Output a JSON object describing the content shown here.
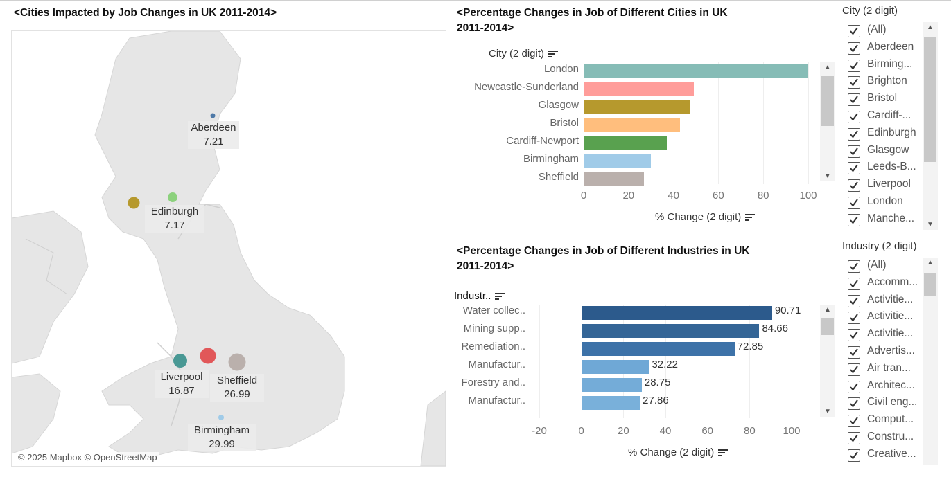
{
  "map": {
    "title": "<Cities Impacted by Job Changes in UK 2011-2014>",
    "copyright": "© 2025 Mapbox © OpenStreetMap",
    "points": [
      {
        "name": "Aberdeen",
        "value": "7.21",
        "color": "#4e79a7"
      },
      {
        "name": "Edinburgh",
        "value": "7.17",
        "color": "#8cd17d"
      },
      {
        "name": "Glasgow",
        "value": "",
        "color": "#b6992d"
      },
      {
        "name": "Liverpool",
        "value": "16.87",
        "color": "#499894"
      },
      {
        "name": "Manchester",
        "value": "",
        "color": "#e15759"
      },
      {
        "name": "Sheffield",
        "value": "26.99",
        "color": "#bab0ac"
      },
      {
        "name": "Birmingham",
        "value": "29.99",
        "color": "#a0cbe8"
      }
    ]
  },
  "city_chart": {
    "title_line1": "<Percentage Changes in Job of Different Cities in UK",
    "title_line2": "2011-2014>",
    "dimension_label": "City (2 digit)",
    "axis_title": "% Change (2 digit)",
    "ticks": [
      "0",
      "20",
      "40",
      "60",
      "80",
      "100"
    ]
  },
  "industry_chart": {
    "title_line1": "<Percentage Changes in Job of Different Industries in UK",
    "title_line2": "2011-2014>",
    "dimension_label": "Industr..",
    "axis_title": "% Change (2 digit)",
    "ticks": [
      "-20",
      "0",
      "20",
      "40",
      "60",
      "80",
      "100"
    ]
  },
  "chart_data": [
    {
      "type": "bar",
      "orientation": "horizontal",
      "title": "<Percentage Changes in Job of Different Cities in UK 2011-2014>",
      "ylabel": "City (2 digit)",
      "xlabel": "% Change (2 digit)",
      "xlim": [
        0,
        100
      ],
      "categories": [
        "London",
        "Newcastle-Sunderland",
        "Glasgow",
        "Bristol",
        "Cardiff-Newport",
        "Birmingham",
        "Sheffield"
      ],
      "values": [
        100,
        49,
        47.5,
        43,
        37,
        30,
        27
      ],
      "colors": [
        "#86bcb6",
        "#ff9d9a",
        "#b6992d",
        "#ffbe7d",
        "#59a14f",
        "#a0cbe8",
        "#bab0ac"
      ]
    },
    {
      "type": "bar",
      "orientation": "horizontal",
      "title": "<Percentage Changes in Job of Different Industries in UK 2011-2014>",
      "ylabel": "Industr..",
      "xlabel": "% Change (2 digit)",
      "xlim": [
        -20,
        100
      ],
      "categories": [
        "Water collec..",
        "Mining supp..",
        "Remediation..",
        "Manufactur..",
        "Forestry and..",
        "Manufactur.."
      ],
      "values": [
        90.71,
        84.66,
        72.85,
        32.22,
        28.75,
        27.86
      ],
      "labels": [
        "90.71",
        "84.66",
        "72.85",
        "32.22",
        "28.75",
        "27.86"
      ],
      "colors": [
        "#2c5a8c",
        "#346596",
        "#3d72a8",
        "#6fa8d6",
        "#74acd8",
        "#79b0da"
      ]
    }
  ],
  "city_filter": {
    "title": "City (2 digit)",
    "items": [
      "(All)",
      "Aberdeen",
      "Birming...",
      "Brighton",
      "Bristol",
      "Cardiff-...",
      "Edinburgh",
      "Glasgow",
      "Leeds-B...",
      "Liverpool",
      "London",
      "Manche..."
    ]
  },
  "industry_filter": {
    "title": "Industry (2 digit)",
    "items": [
      "(All)",
      "Accomm...",
      "Activitie...",
      "Activitie...",
      "Activitie...",
      "Advertis...",
      "Air tran...",
      "Architec...",
      "Civil eng...",
      "Comput...",
      "Constru...",
      "Creative..."
    ]
  }
}
